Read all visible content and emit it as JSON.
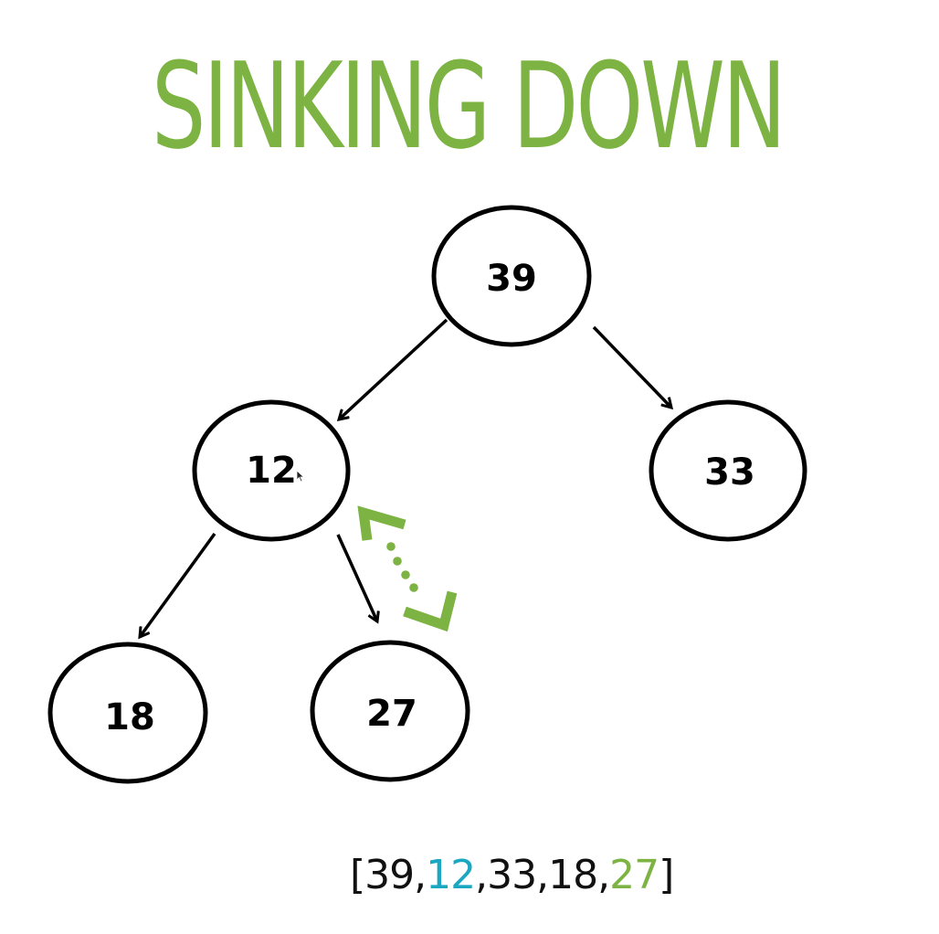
{
  "title": "SINKING DOWN",
  "colors": {
    "title": "#7cb342",
    "swap_indicator": "#7cb342",
    "highlight_current": "#1aa7c2",
    "highlight_child": "#7cb342",
    "node_stroke": "#000000",
    "text": "#111111"
  },
  "nodes": [
    {
      "id": "root",
      "label": "39"
    },
    {
      "id": "left",
      "label": "12"
    },
    {
      "id": "right",
      "label": "33"
    },
    {
      "id": "left-left",
      "label": "18"
    },
    {
      "id": "left-right",
      "label": "27"
    }
  ],
  "array": {
    "open": "[",
    "values": [
      "39",
      "12",
      "33",
      "18",
      "27"
    ],
    "separator": ",",
    "close": "]",
    "highlighted_current_index": 1,
    "highlighted_child_index": 4
  },
  "icons": {
    "swap_indicator": "dotted-swap-bracket-icon",
    "cursor": "mouse-pointer-icon"
  }
}
